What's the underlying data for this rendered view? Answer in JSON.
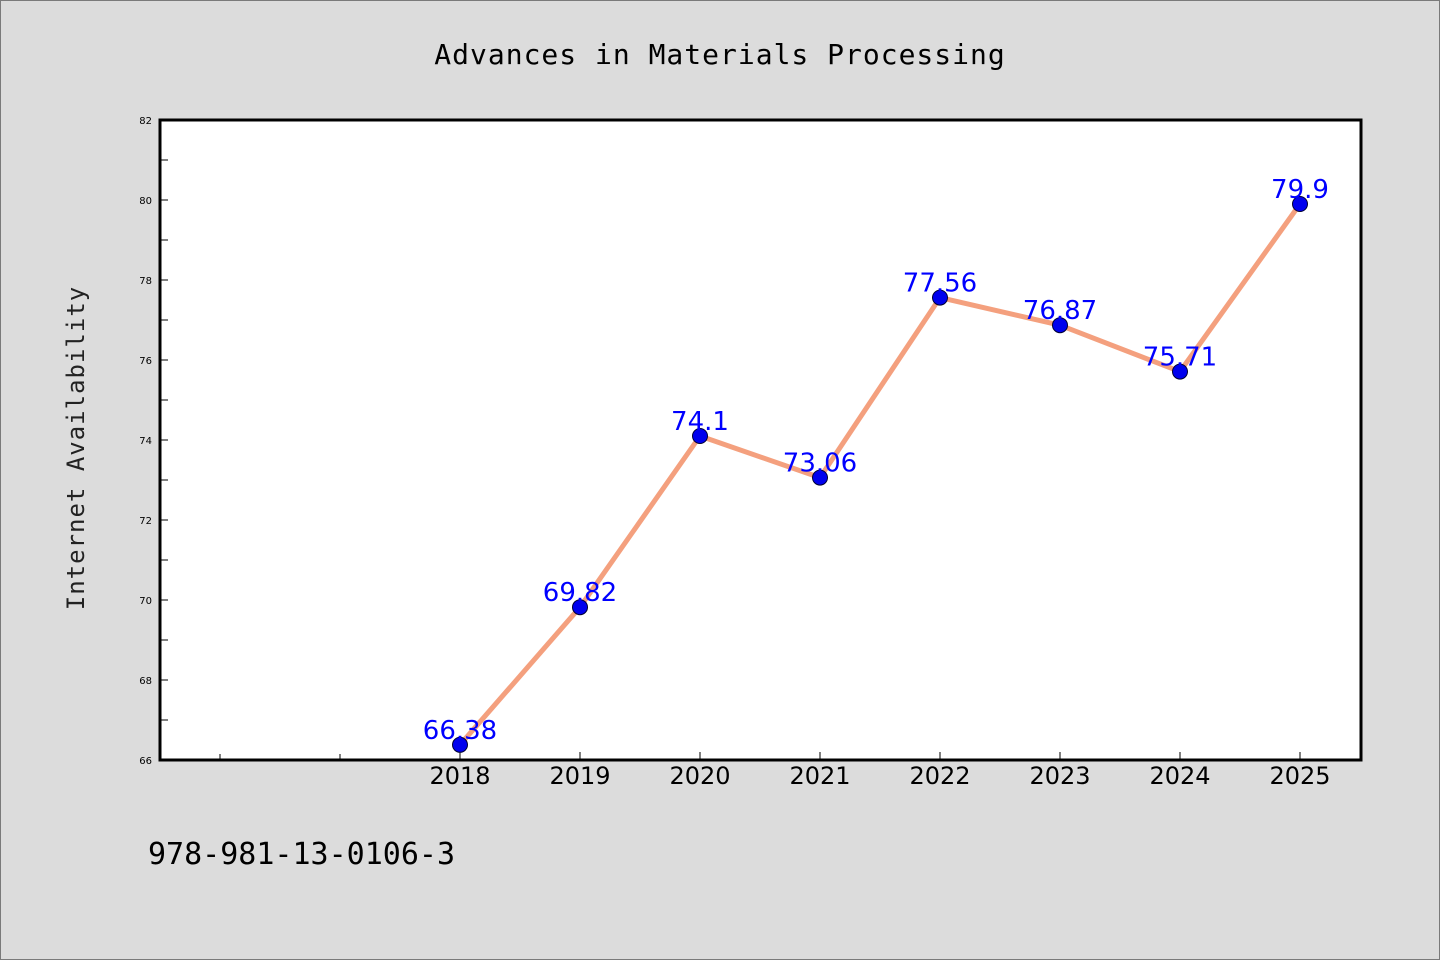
{
  "chart_data": {
    "type": "line",
    "title": "Advances in Materials Processing",
    "xlabel": "",
    "ylabel": "Internet Availability",
    "categories": [
      "2018",
      "2019",
      "2020",
      "2021",
      "2022",
      "2023",
      "2024",
      "2025"
    ],
    "series": [
      {
        "values": [
          66.38,
          69.82,
          74.1,
          73.06,
          77.56,
          76.87,
          75.71,
          79.9
        ],
        "labels": [
          "66.38",
          "69.82",
          "74.1",
          "73.06",
          "77.56",
          "76.87",
          "75.71",
          "79.9"
        ]
      }
    ],
    "ylim": [
      66,
      82
    ],
    "yticks": [
      "66",
      "68",
      "70",
      "72",
      "74",
      "76",
      "78",
      "80",
      "82"
    ],
    "grid": false,
    "legend": "none",
    "colors": {
      "line": "#f4a07e",
      "marker": "#0000ee",
      "label": "#0000ff",
      "plot_background": "#ffffff",
      "page_background": "#dcdcdc"
    }
  },
  "footer": {
    "code": "978-981-13-0106-3"
  }
}
